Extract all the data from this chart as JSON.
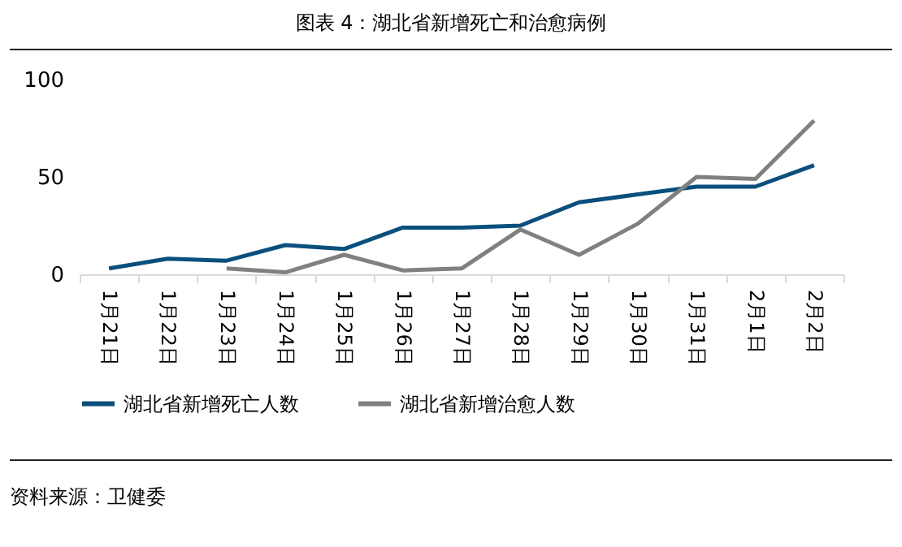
{
  "chart_data": {
    "type": "line",
    "title": "图表 4：湖北省新增死亡和治愈病例",
    "categories": [
      "1月21日",
      "1月22日",
      "1月23日",
      "1月24日",
      "1月25日",
      "1月26日",
      "1月27日",
      "1月28日",
      "1月29日",
      "1月30日",
      "1月31日",
      "2月1日",
      "2月2日"
    ],
    "series": [
      {
        "name": "湖北省新增死亡人数",
        "color": "#0b4f7c",
        "values": [
          3,
          8,
          7,
          15,
          13,
          24,
          24,
          25,
          37,
          41,
          45,
          45,
          56
        ]
      },
      {
        "name": "湖北省新增治愈人数",
        "color": "#808080",
        "values": [
          null,
          null,
          3,
          1,
          10,
          2,
          3,
          23,
          10,
          26,
          50,
          49,
          79
        ]
      }
    ],
    "ylim": [
      0,
      100
    ],
    "yticks": [
      0,
      50,
      100
    ],
    "grid": false,
    "legend": "bottom",
    "marker": "none",
    "line_style": "solid",
    "annotations": [
      "资料来源：卫健委"
    ]
  }
}
